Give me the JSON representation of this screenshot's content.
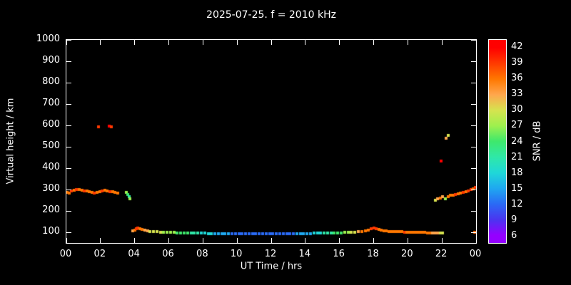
{
  "title": "2025-07-25. f = 2010 kHz",
  "colors": {
    "background": "#000000",
    "foreground": "#ffffff"
  },
  "axes": {
    "xlabel": "UT Time / hrs",
    "ylabel": "Virtual height / km",
    "xlim": [
      0,
      24
    ],
    "ylim": [
      50,
      1000
    ],
    "x_ticks": [
      {
        "v": 0,
        "label": "00"
      },
      {
        "v": 2,
        "label": "02"
      },
      {
        "v": 4,
        "label": "04"
      },
      {
        "v": 6,
        "label": "06"
      },
      {
        "v": 8,
        "label": "08"
      },
      {
        "v": 10,
        "label": "10"
      },
      {
        "v": 12,
        "label": "12"
      },
      {
        "v": 14,
        "label": "14"
      },
      {
        "v": 16,
        "label": "16"
      },
      {
        "v": 18,
        "label": "18"
      },
      {
        "v": 20,
        "label": "20"
      },
      {
        "v": 22,
        "label": "22"
      },
      {
        "v": 24,
        "label": "00"
      }
    ],
    "y_ticks": [
      {
        "v": 100,
        "label": "100"
      },
      {
        "v": 200,
        "label": "200"
      },
      {
        "v": 300,
        "label": "300"
      },
      {
        "v": 400,
        "label": "400"
      },
      {
        "v": 500,
        "label": "500"
      },
      {
        "v": 600,
        "label": "600"
      },
      {
        "v": 700,
        "label": "700"
      },
      {
        "v": 800,
        "label": "800"
      },
      {
        "v": 900,
        "label": "900"
      },
      {
        "v": 1000,
        "label": "1000"
      }
    ]
  },
  "colorbar": {
    "label": "SNR / dB",
    "vmin": 4.5,
    "vmax": 43.5,
    "ticks": [
      6,
      9,
      12,
      15,
      18,
      21,
      24,
      27,
      30,
      33,
      36,
      39,
      42
    ],
    "stops": [
      {
        "v": 6,
        "color": "#9500ff"
      },
      {
        "v": 9,
        "color": "#4a35f0"
      },
      {
        "v": 12,
        "color": "#2a6af5"
      },
      {
        "v": 15,
        "color": "#1fa8f0"
      },
      {
        "v": 18,
        "color": "#1fd8d8"
      },
      {
        "v": 21,
        "color": "#2fe8a8"
      },
      {
        "v": 24,
        "color": "#3ee86c"
      },
      {
        "v": 27,
        "color": "#9ef04e"
      },
      {
        "v": 30,
        "color": "#d6e34f"
      },
      {
        "v": 33,
        "color": "#ffa64d"
      },
      {
        "v": 36,
        "color": "#ff7700"
      },
      {
        "v": 39,
        "color": "#ff3a00"
      },
      {
        "v": 42,
        "color": "#ff0000"
      }
    ]
  },
  "chart_data": {
    "type": "scatter",
    "title": "2025-07-25. f = 2010 kHz",
    "xlabel": "UT Time / hrs",
    "ylabel": "Virtual height / km",
    "color_label": "SNR / dB",
    "xlim": [
      0,
      24
    ],
    "ylim": [
      50,
      1000
    ],
    "grid": false,
    "point_format": [
      "ut_time_hrs",
      "virtual_height_km",
      "snr_db"
    ],
    "points": [
      [
        0.05,
        288,
        37
      ],
      [
        0.15,
        285,
        36
      ],
      [
        0.3,
        292,
        38
      ],
      [
        0.45,
        296,
        37
      ],
      [
        0.6,
        299,
        38
      ],
      [
        0.75,
        300,
        36
      ],
      [
        0.9,
        298,
        37
      ],
      [
        1.05,
        295,
        38
      ],
      [
        1.2,
        292,
        36
      ],
      [
        1.35,
        289,
        37
      ],
      [
        1.5,
        286,
        36
      ],
      [
        1.65,
        285,
        38
      ],
      [
        1.8,
        287,
        37
      ],
      [
        1.95,
        290,
        36
      ],
      [
        2.1,
        292,
        38
      ],
      [
        2.25,
        296,
        37
      ],
      [
        2.4,
        294,
        36
      ],
      [
        2.55,
        291,
        38
      ],
      [
        2.7,
        289,
        37
      ],
      [
        2.85,
        286,
        36
      ],
      [
        3.0,
        284,
        37
      ],
      [
        1.9,
        592,
        40
      ],
      [
        2.5,
        597,
        41
      ],
      [
        2.65,
        592,
        40
      ],
      [
        3.5,
        286,
        27
      ],
      [
        3.58,
        276,
        24
      ],
      [
        3.66,
        266,
        21
      ],
      [
        3.74,
        257,
        27
      ],
      [
        3.9,
        106,
        33
      ],
      [
        4.0,
        111,
        36
      ],
      [
        4.1,
        117,
        39
      ],
      [
        4.2,
        121,
        38
      ],
      [
        4.3,
        118,
        37
      ],
      [
        4.45,
        113,
        35
      ],
      [
        4.6,
        109,
        33
      ],
      [
        4.75,
        106,
        32
      ],
      [
        4.9,
        104,
        31
      ],
      [
        5.1,
        103,
        30
      ],
      [
        5.3,
        102,
        30
      ],
      [
        5.5,
        101,
        29
      ],
      [
        5.7,
        100,
        28
      ],
      [
        5.9,
        100,
        27
      ],
      [
        6.1,
        99,
        27
      ],
      [
        6.3,
        99,
        26
      ],
      [
        6.5,
        98,
        25
      ],
      [
        6.7,
        98,
        24
      ],
      [
        6.9,
        97,
        24
      ],
      [
        7.1,
        97,
        23
      ],
      [
        7.3,
        97,
        22
      ],
      [
        7.5,
        96,
        21
      ],
      [
        7.7,
        96,
        20
      ],
      [
        7.9,
        96,
        19
      ],
      [
        8.1,
        96,
        18
      ],
      [
        8.3,
        95,
        18
      ],
      [
        8.5,
        95,
        17
      ],
      [
        8.7,
        95,
        16
      ],
      [
        8.9,
        95,
        15
      ],
      [
        9.1,
        95,
        15
      ],
      [
        9.3,
        95,
        14
      ],
      [
        9.5,
        95,
        14
      ],
      [
        9.7,
        95,
        13
      ],
      [
        9.9,
        94,
        13
      ],
      [
        10.1,
        94,
        12
      ],
      [
        10.3,
        94,
        12
      ],
      [
        10.5,
        94,
        12
      ],
      [
        10.7,
        94,
        12
      ],
      [
        10.9,
        94,
        12
      ],
      [
        11.1,
        94,
        11
      ],
      [
        11.3,
        94,
        11
      ],
      [
        11.5,
        94,
        12
      ],
      [
        11.7,
        94,
        12
      ],
      [
        11.9,
        94,
        12
      ],
      [
        12.1,
        94,
        12
      ],
      [
        12.3,
        94,
        11
      ],
      [
        12.5,
        94,
        12
      ],
      [
        12.7,
        94,
        12
      ],
      [
        12.9,
        94,
        12
      ],
      [
        13.1,
        94,
        13
      ],
      [
        13.3,
        94,
        13
      ],
      [
        13.5,
        95,
        14
      ],
      [
        13.7,
        95,
        14
      ],
      [
        13.9,
        95,
        15
      ],
      [
        14.1,
        95,
        15
      ],
      [
        14.3,
        95,
        16
      ],
      [
        14.5,
        96,
        17
      ],
      [
        14.7,
        96,
        18
      ],
      [
        14.9,
        96,
        19
      ],
      [
        15.1,
        96,
        20
      ],
      [
        15.3,
        97,
        21
      ],
      [
        15.5,
        97,
        22
      ],
      [
        15.7,
        97,
        23
      ],
      [
        15.9,
        98,
        24
      ],
      [
        16.1,
        98,
        25
      ],
      [
        16.3,
        99,
        27
      ],
      [
        16.5,
        99,
        28
      ],
      [
        16.7,
        100,
        30
      ],
      [
        16.9,
        101,
        31
      ],
      [
        17.1,
        102,
        33
      ],
      [
        17.3,
        104,
        35
      ],
      [
        17.5,
        107,
        36
      ],
      [
        17.7,
        111,
        37
      ],
      [
        17.85,
        116,
        38
      ],
      [
        18.0,
        119,
        38
      ],
      [
        18.15,
        116,
        38
      ],
      [
        18.3,
        112,
        37
      ],
      [
        18.45,
        109,
        37
      ],
      [
        18.6,
        107,
        36
      ],
      [
        18.75,
        106,
        37
      ],
      [
        18.9,
        105,
        36
      ],
      [
        19.05,
        104,
        37
      ],
      [
        19.2,
        103,
        36
      ],
      [
        19.35,
        103,
        37
      ],
      [
        19.5,
        102,
        36
      ],
      [
        19.65,
        102,
        37
      ],
      [
        19.8,
        101,
        38
      ],
      [
        19.95,
        101,
        36
      ],
      [
        20.1,
        100,
        37
      ],
      [
        20.25,
        100,
        36
      ],
      [
        20.4,
        100,
        37
      ],
      [
        20.55,
        99,
        36
      ],
      [
        20.7,
        99,
        37
      ],
      [
        20.85,
        99,
        36
      ],
      [
        21.0,
        99,
        37
      ],
      [
        21.15,
        98,
        36
      ],
      [
        21.3,
        98,
        35
      ],
      [
        21.45,
        98,
        34
      ],
      [
        21.6,
        98,
        33
      ],
      [
        21.75,
        97,
        32
      ],
      [
        21.9,
        97,
        31
      ],
      [
        22.05,
        97,
        30
      ],
      [
        21.6,
        250,
        30
      ],
      [
        21.75,
        256,
        33
      ],
      [
        21.9,
        261,
        35
      ],
      [
        22.05,
        266,
        32
      ],
      [
        22.2,
        258,
        27
      ],
      [
        22.35,
        268,
        36
      ],
      [
        22.5,
        272,
        37
      ],
      [
        22.65,
        275,
        36
      ],
      [
        22.8,
        278,
        38
      ],
      [
        22.95,
        281,
        37
      ],
      [
        23.1,
        284,
        36
      ],
      [
        23.25,
        287,
        38
      ],
      [
        23.4,
        291,
        37
      ],
      [
        23.55,
        295,
        39
      ],
      [
        23.7,
        299,
        38
      ],
      [
        23.85,
        305,
        37
      ],
      [
        23.95,
        309,
        38
      ],
      [
        21.95,
        432,
        41
      ],
      [
        22.25,
        540,
        33
      ],
      [
        22.35,
        553,
        30
      ],
      [
        23.9,
        99,
        35
      ]
    ]
  }
}
